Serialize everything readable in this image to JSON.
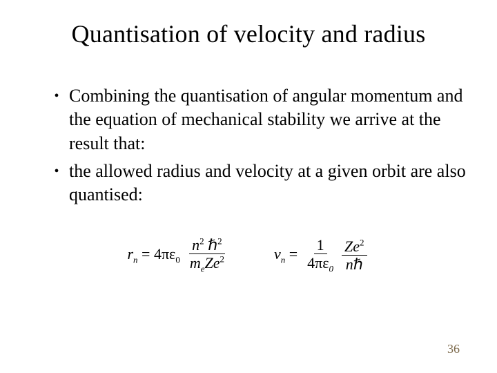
{
  "title": "Quantisation of velocity and radius",
  "bullets": [
    "Combining the quantisation of angular momentum and the equation of mechanical stability we arrive at the result that:",
    "the allowed radius and velocity at a given orbit are also quantised:"
  ],
  "equations": {
    "radius": {
      "lhs_var": "r",
      "lhs_sub": "n",
      "coeff": "4πε",
      "coeff_sub": "0",
      "num_a": "n",
      "num_a_sup": "2",
      "num_b": "ℏ",
      "num_b_sup": "2",
      "den_a": "m",
      "den_a_sub": "e",
      "den_b": "Ze",
      "den_b_sup": "2"
    },
    "velocity": {
      "lhs_var": "v",
      "lhs_sub": "n",
      "frac1_num": "1",
      "frac1_den": "4πε",
      "frac1_den_sub": "0",
      "frac2_num_a": "Ze",
      "frac2_num_sup": "2",
      "frac2_den_a": "n",
      "frac2_den_b": "ℏ"
    }
  },
  "slide_number": "36",
  "colors": {
    "background": "#ffffff",
    "text": "#000000",
    "slidenum": "#7d6a4c"
  }
}
